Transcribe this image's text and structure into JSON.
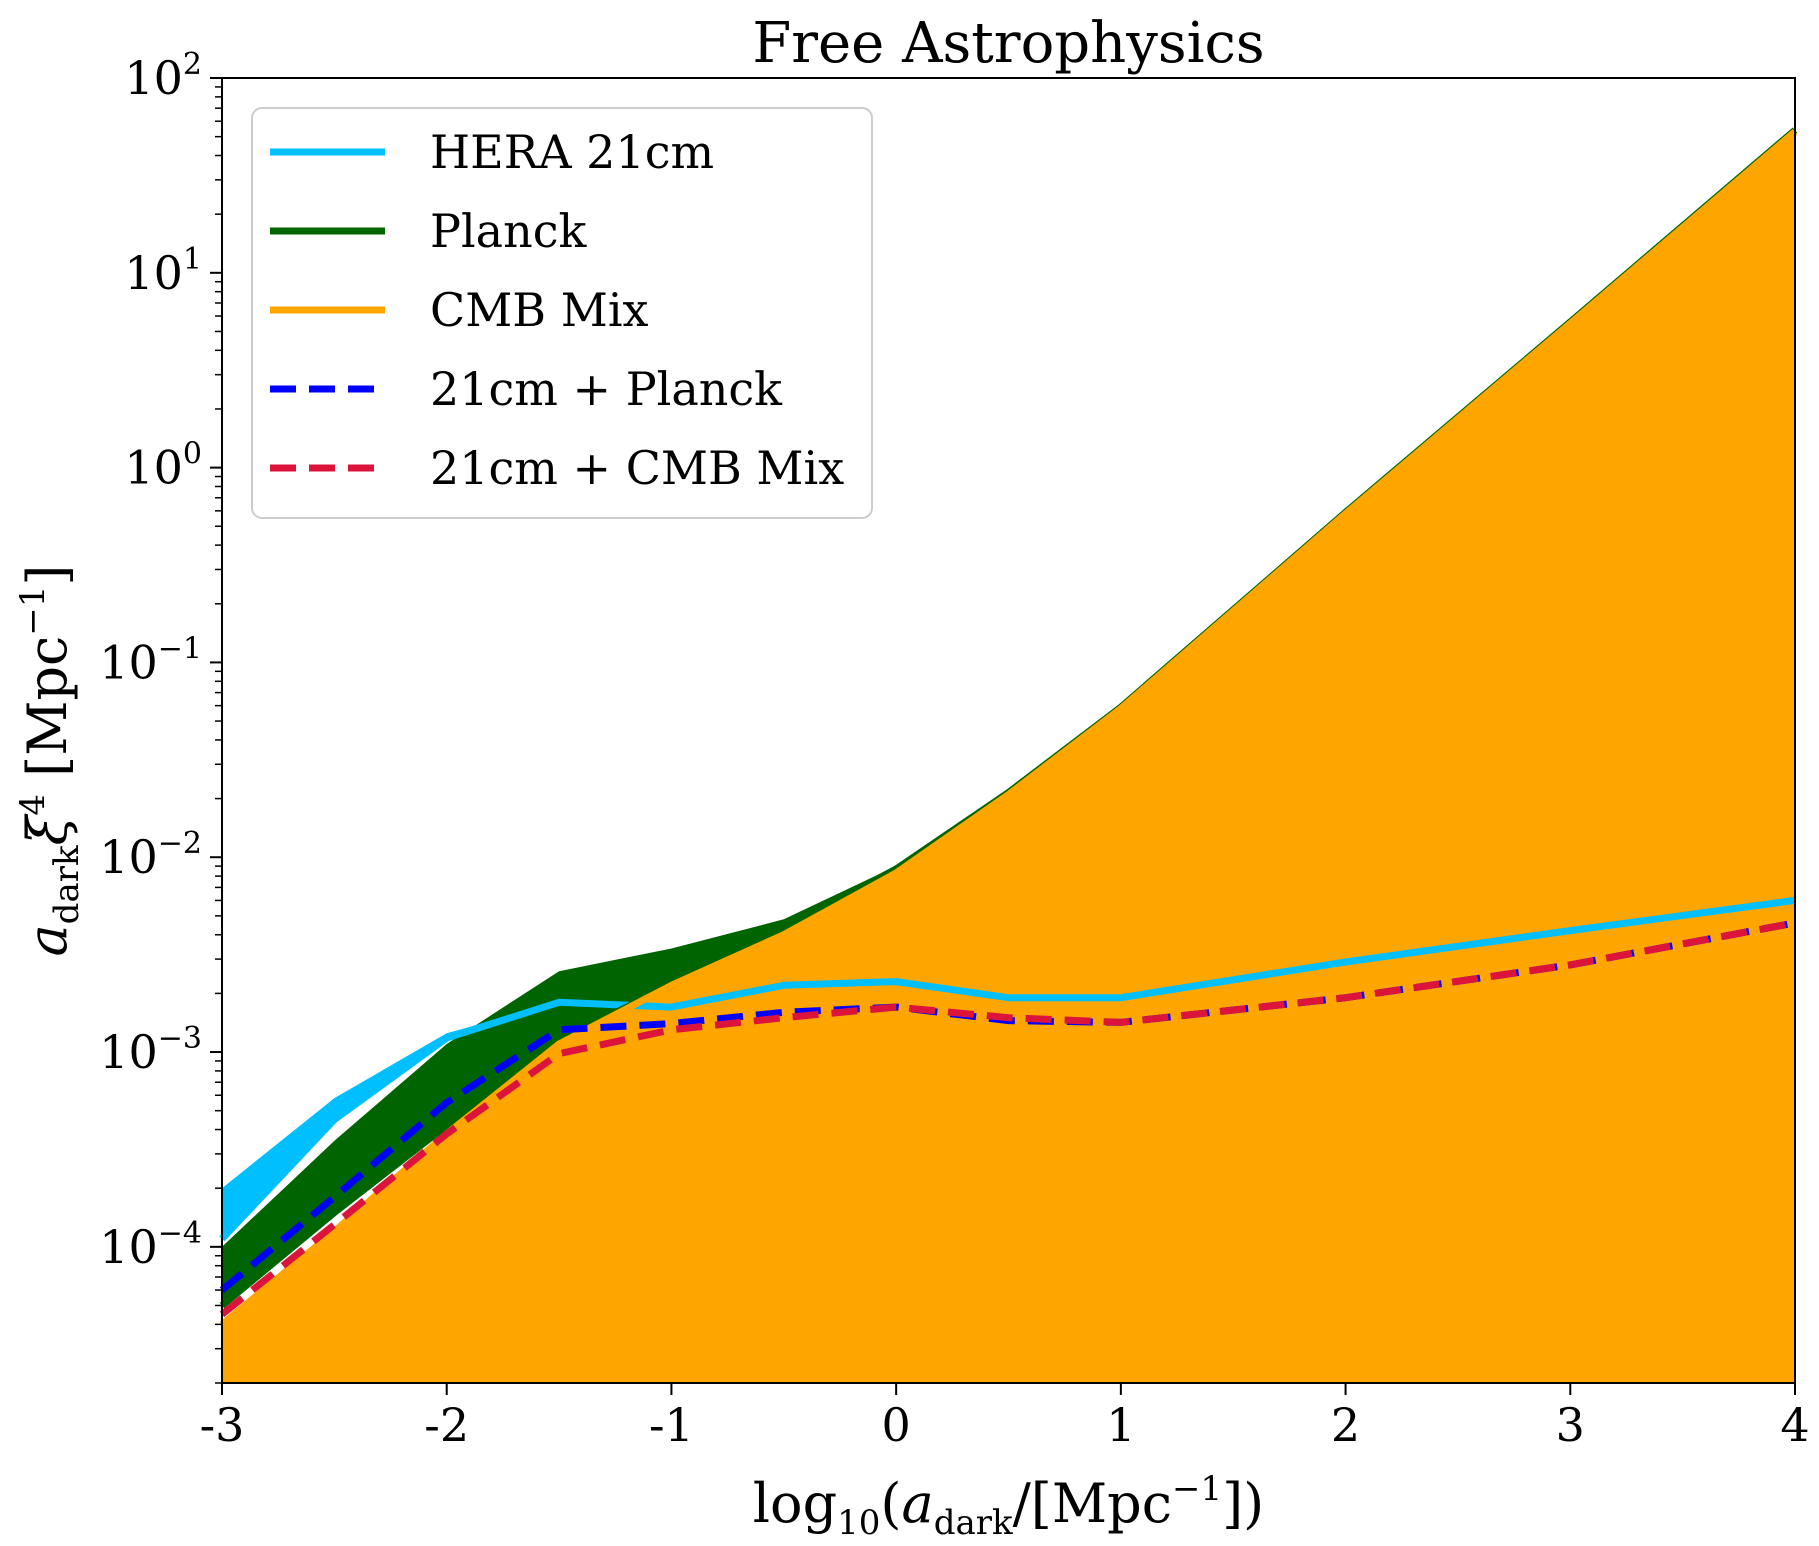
{
  "chart_data": {
    "type": "area",
    "title": "Free Astrophysics",
    "xlabel": "log10(a_dark/[Mpc^-1])",
    "ylabel": "a_dark ξ^4 [Mpc^-1]",
    "xlim": [
      -3,
      4
    ],
    "ylim": [
      2e-05,
      100
    ],
    "yscale": "log",
    "grid": false,
    "legend_location": "upper-left",
    "x_ticks": [
      -3,
      -2,
      -1,
      0,
      1,
      2,
      3,
      4
    ],
    "x_tick_labels": [
      "-3",
      "-2",
      "-1",
      "0",
      "1",
      "2",
      "3",
      "4"
    ],
    "y_ticks": [
      {
        "value": 0.0001,
        "base": "10",
        "exp": "−4"
      },
      {
        "value": 0.001,
        "base": "10",
        "exp": "−3"
      },
      {
        "value": 0.01,
        "base": "10",
        "exp": "−2"
      },
      {
        "value": 0.1,
        "base": "10",
        "exp": "−1"
      },
      {
        "value": 1,
        "base": "10",
        "exp": "0"
      },
      {
        "value": 10,
        "base": "10",
        "exp": "1"
      },
      {
        "value": 100,
        "base": "10",
        "exp": "2"
      }
    ],
    "bands": [
      {
        "name": "HERA 21cm band",
        "color": "#00BFFF",
        "x": [
          -3,
          -2.5,
          -2,
          -1.5,
          -1,
          -0.5,
          0,
          0.5,
          1,
          2,
          3,
          4
        ],
        "upper": [
          0.0002,
          0.00058,
          0.00125,
          0.0018,
          0.0017,
          0.0022,
          0.0023,
          0.0019,
          0.0019,
          0.0029,
          0.0042,
          0.0062
        ],
        "lower": [
          0.00011,
          0.00045,
          0.00115,
          0.0016,
          0.00155,
          0.00195,
          0.0021,
          0.00175,
          0.00175,
          0.0028,
          0.004,
          0.0058
        ]
      },
      {
        "name": "Planck band",
        "color": "#006400",
        "x": [
          -3,
          -2.5,
          -2,
          -1.5,
          -1,
          -0.5,
          0,
          0.5,
          1,
          2,
          3,
          4
        ],
        "upper": [
          0.0001,
          0.00035,
          0.0011,
          0.0026,
          0.0034,
          0.0048,
          0.009,
          0.022,
          0.06,
          0.6,
          5.7,
          55
        ],
        "lower": [
          5e-05,
          0.00015,
          0.00042,
          0.00115,
          0.0022,
          0.004,
          0.0083,
          0.021,
          0.058,
          0.58,
          5.5,
          53
        ]
      },
      {
        "name": "CMB Mix band",
        "color": "#FFA500",
        "x": [
          -3,
          -2.5,
          -2,
          -1.5,
          -1,
          -0.5,
          0,
          0.5,
          1,
          2,
          3,
          4
        ],
        "upper": [
          4e-05,
          0.00012,
          0.00038,
          0.0011,
          0.0022,
          0.004,
          0.0083,
          0.021,
          0.058,
          0.58,
          5.5,
          53
        ],
        "lower": [
          2e-05,
          2e-05,
          2e-05,
          2e-05,
          2e-05,
          2e-05,
          2e-05,
          2e-05,
          2e-05,
          2e-05,
          2e-05,
          2e-05
        ]
      }
    ],
    "series": [
      {
        "name": "HERA 21cm",
        "color": "#00BFFF",
        "style": "solid",
        "x": [
          -3,
          -2.5,
          -2,
          -1.5,
          -1,
          -0.5,
          0,
          0.5,
          1,
          2,
          3,
          4
        ],
        "values": [
          0.00011,
          0.00045,
          0.00118,
          0.0018,
          0.0017,
          0.0022,
          0.0023,
          0.0019,
          0.0019,
          0.0029,
          0.0042,
          0.006
        ]
      },
      {
        "name": "Planck",
        "color": "#006400",
        "style": "solid",
        "x": [
          -3,
          -2.5,
          -2,
          -1.5,
          -1,
          -0.5,
          0,
          0.5,
          1,
          2,
          3,
          4
        ],
        "values": [
          5e-05,
          0.00015,
          0.00042,
          0.00115,
          0.0022,
          0.0043,
          0.0087,
          0.0215,
          0.059,
          0.59,
          5.6,
          54
        ]
      },
      {
        "name": "CMB Mix",
        "color": "#FFA500",
        "style": "solid",
        "x": [
          -3,
          -2.5,
          -2,
          -1.5,
          -1,
          -0.5,
          0,
          0.5,
          1,
          2,
          3,
          4
        ],
        "values": [
          4e-05,
          0.00012,
          0.00038,
          0.0011,
          0.0022,
          0.004,
          0.0083,
          0.021,
          0.058,
          0.58,
          5.5,
          53
        ]
      },
      {
        "name": "21cm + Planck",
        "color": "#0000FF",
        "style": "dashed",
        "x": [
          -3,
          -2.5,
          -2,
          -1.5,
          -1,
          -0.5,
          0,
          0.5,
          1,
          2,
          3,
          4
        ],
        "values": [
          6e-05,
          0.00018,
          0.00055,
          0.0013,
          0.0014,
          0.0016,
          0.0017,
          0.00145,
          0.00142,
          0.0019,
          0.0028,
          0.0046
        ]
      },
      {
        "name": "21cm + CMB Mix",
        "color": "#DC143C",
        "style": "dashed",
        "x": [
          -3,
          -2.5,
          -2,
          -1.5,
          -1,
          -0.5,
          0,
          0.5,
          1,
          2,
          3,
          4
        ],
        "values": [
          4.5e-05,
          0.00013,
          0.00038,
          0.00098,
          0.0013,
          0.0015,
          0.0017,
          0.0015,
          0.00142,
          0.0019,
          0.0028,
          0.0046
        ]
      }
    ],
    "legend": [
      "HERA 21cm",
      "Planck",
      "CMB Mix",
      "21cm + Planck",
      "21cm + CMB Mix"
    ]
  }
}
